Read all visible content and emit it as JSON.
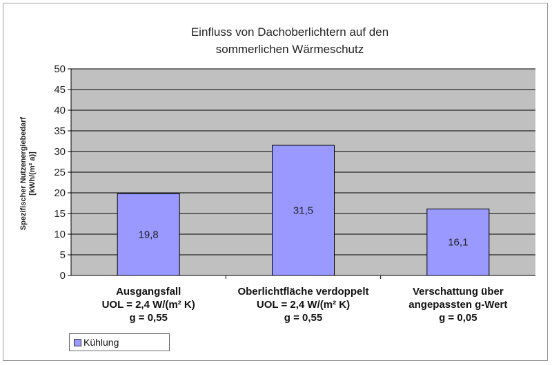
{
  "chart_data": {
    "type": "bar",
    "title": [
      "Einfluss von Dachoberlichtern auf den",
      "sommerlichen Wärmeschutz"
    ],
    "ylabel": [
      "Spezifischer Nutzenergiebedarf",
      "[kWh/(m² a)]"
    ],
    "ylim": [
      0,
      50
    ],
    "yticks": [
      0,
      5,
      10,
      15,
      20,
      25,
      30,
      35,
      40,
      45,
      50
    ],
    "grid": true,
    "legend_position": "bottom-left",
    "categories": [
      [
        "Ausgangsfall",
        "UOL = 2,4 W/(m² K)",
        "g = 0,55"
      ],
      [
        "Oberlichtfläche verdoppelt",
        "UOL = 2,4 W/(m² K)",
        "g = 0,55"
      ],
      [
        "Verschattung über",
        "angepassten g-Wert",
        "g = 0,05"
      ]
    ],
    "series": [
      {
        "name": "Kühlung",
        "values": [
          19.8,
          31.5,
          16.1
        ],
        "labels": [
          "19,8",
          "31,5",
          "16,1"
        ]
      }
    ],
    "colors": {
      "bar": "#9999ff",
      "plot_bg": "#c0c0c0",
      "grid": "#000000"
    }
  }
}
